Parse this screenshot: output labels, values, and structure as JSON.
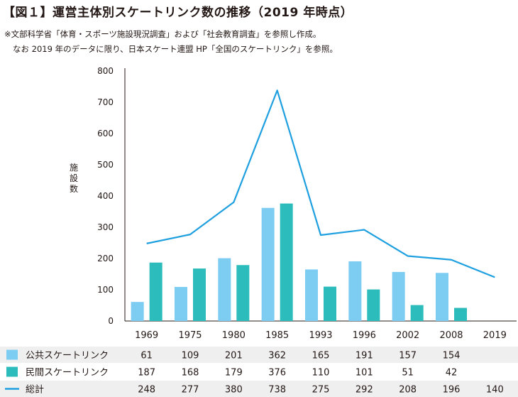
{
  "title": "【図１】運営主体別スケートリンク数の推移（2019 年時点）",
  "notes": [
    "※文部科学省「体育・スポーツ施設現況調査」および「社会教育調査」を参照し作成。",
    "なお 2019 年のデータに限り、日本スケート連盟 HP「全国のスケートリンク」を参照。"
  ],
  "colors": {
    "public": "#7dcdf3",
    "private": "#2cbcbc",
    "total": "#1e9fe0"
  },
  "chart_data": {
    "type": "bar",
    "title": "【図１】運営主体別スケートリンク数の推移（2019 年時点）",
    "ylabel": "施設数",
    "xlabel": "",
    "ylim": [
      0,
      800
    ],
    "yticks": [
      0,
      100,
      200,
      300,
      400,
      500,
      600,
      700,
      800
    ],
    "categories": [
      "1969",
      "1975",
      "1980",
      "1985",
      "1993",
      "1996",
      "2002",
      "2008",
      "2019"
    ],
    "series": [
      {
        "name": "公共スケートリンク",
        "type": "bar",
        "values": [
          61,
          109,
          201,
          362,
          165,
          191,
          157,
          154,
          null
        ]
      },
      {
        "name": "民間スケートリンク",
        "type": "bar",
        "values": [
          187,
          168,
          179,
          376,
          110,
          101,
          51,
          42,
          null
        ]
      },
      {
        "name": "総計",
        "type": "line",
        "values": [
          248,
          277,
          380,
          738,
          275,
          292,
          208,
          196,
          140
        ]
      }
    ],
    "grid": false,
    "legend": "table-below"
  }
}
